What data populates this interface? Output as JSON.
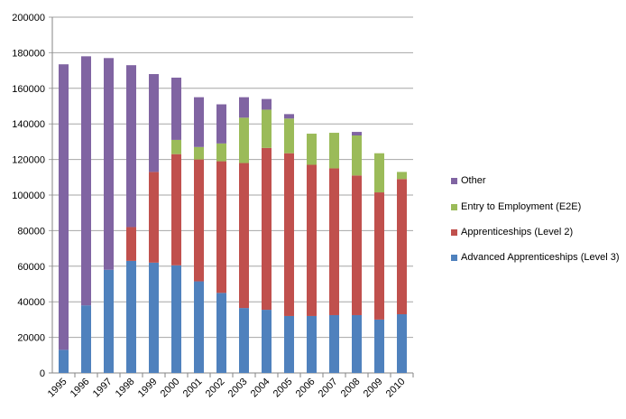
{
  "chart_data": {
    "type": "bar",
    "stacked": true,
    "title": "",
    "xlabel": "",
    "ylabel": "",
    "ylim": [
      0,
      200000
    ],
    "yticks": [
      "0",
      "20000",
      "40000",
      "60000",
      "80000",
      "100000",
      "120000",
      "140000",
      "160000",
      "180000",
      "200000"
    ],
    "categories": [
      "1995",
      "1996",
      "1997",
      "1998",
      "1999",
      "2000",
      "2001",
      "2002",
      "2003",
      "2004",
      "2005",
      "2006",
      "2007",
      "2008",
      "2009",
      "2010"
    ],
    "series": [
      {
        "name": "Advanced Apprenticeships (Level 3)",
        "color": "#4f81bd",
        "values": [
          13000,
          38000,
          58000,
          63000,
          62000,
          60500,
          51500,
          45000,
          36500,
          35500,
          32000,
          32000,
          32500,
          32500,
          30000,
          33000
        ]
      },
      {
        "name": "Apprenticeships (Level 2)",
        "color": "#c0504d",
        "values": [
          0,
          0,
          0,
          19000,
          51000,
          62500,
          68500,
          74000,
          81500,
          91000,
          91500,
          85000,
          82500,
          78500,
          71500,
          76000
        ]
      },
      {
        "name": "Entry to Employment (E2E)",
        "color": "#9bbb59",
        "values": [
          0,
          0,
          0,
          0,
          0,
          8000,
          7000,
          10000,
          25500,
          21500,
          19500,
          17500,
          20000,
          22500,
          22000,
          4000
        ]
      },
      {
        "name": "Other",
        "color": "#8064a2",
        "values": [
          160500,
          140000,
          119000,
          91000,
          55000,
          35000,
          28000,
          22000,
          11500,
          6000,
          2500,
          0,
          0,
          2000,
          0,
          0
        ]
      }
    ],
    "legend": "right",
    "grid": true
  }
}
